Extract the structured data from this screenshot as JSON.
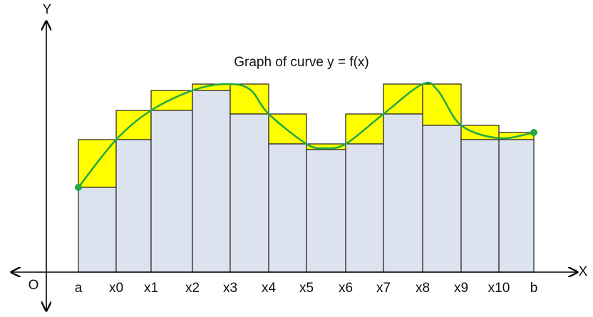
{
  "title": "Graph of curve y = f(x)",
  "axes": {
    "x": "X",
    "y": "Y",
    "origin": "O"
  },
  "x_labels": [
    "a",
    "x0",
    "x1",
    "x2",
    "x3",
    "x4",
    "x5",
    "x6",
    "x7",
    "x8",
    "x9",
    "x10",
    "b"
  ]
}
